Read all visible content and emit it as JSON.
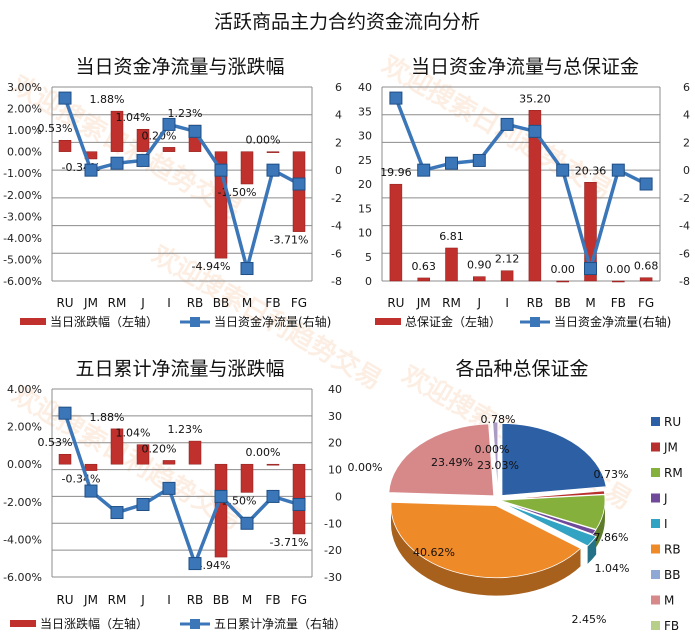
{
  "main_title": "活跃商品主力合约资金流向分析",
  "watermark": "欢迎搜索日利趋势交易",
  "colors": {
    "bar": "#c0302c",
    "line": "#3b76b8",
    "marker": "#3b76b8",
    "grid": "#8c8c8c"
  },
  "chart_data": [
    {
      "type": "bar+line",
      "title": "当日资金净流量与涨跌幅",
      "categories": [
        "RU",
        "JM",
        "RM",
        "J",
        "I",
        "RB",
        "BB",
        "M",
        "FB",
        "FG"
      ],
      "bar_series": {
        "name": "当日涨跌幅（左轴）",
        "values": [
          0.53,
          -0.34,
          1.88,
          1.04,
          0.2,
          1.23,
          -4.94,
          -1.5,
          0.0,
          -3.71
        ],
        "labels": [
          "0.53%",
          "-0.34%",
          "1.88%",
          "1.04%",
          "0.20%",
          "1.23%",
          "-4.94%",
          "-1.50%",
          "0.00%",
          "-3.71%"
        ]
      },
      "line_series": {
        "name": "当日资金净流量(右轴)",
        "values": [
          5.2,
          0.0,
          0.5,
          0.7,
          3.3,
          2.8,
          0.0,
          -7.1,
          0.0,
          -1.0
        ]
      },
      "y_left": {
        "range": [
          -6,
          3
        ],
        "step": 1,
        "ticks": [
          "3.00%",
          "2.00%",
          "1.00%",
          "0.00%",
          "-1.00%",
          "-2.00%",
          "-3.00%",
          "-4.00%",
          "-5.00%",
          "-6.00%"
        ]
      },
      "y_right": {
        "range": [
          -8,
          6
        ],
        "step": 2,
        "ticks": [
          "6",
          "4",
          "2",
          "0",
          "-2",
          "-4",
          "-6",
          "-8"
        ]
      },
      "grid": true,
      "legend": "bottom"
    },
    {
      "type": "bar+line",
      "title": "当日资金净流量与总保证金",
      "categories": [
        "RU",
        "JM",
        "RM",
        "J",
        "I",
        "RB",
        "BB",
        "M",
        "FB",
        "FG"
      ],
      "bar_series": {
        "name": "总保证金（左轴）",
        "values": [
          19.96,
          0.63,
          6.81,
          0.9,
          2.12,
          35.2,
          0.0,
          20.36,
          0.0,
          0.68
        ],
        "labels": [
          "19.96",
          "0.63",
          "6.81",
          "0.90",
          "2.12",
          "35.20",
          "0.00",
          "20.36",
          "0.00",
          "0.68"
        ]
      },
      "line_series": {
        "name": "当日资金净流量(右轴)",
        "values": [
          5.2,
          0.0,
          0.5,
          0.7,
          3.3,
          2.8,
          0.0,
          -7.1,
          0.0,
          -1.0
        ]
      },
      "y_left": {
        "range": [
          0,
          40
        ],
        "step": 5,
        "ticks": [
          "40",
          "35",
          "30",
          "25",
          "20",
          "15",
          "10",
          "5",
          "0"
        ]
      },
      "y_right": {
        "range": [
          -8,
          6
        ],
        "step": 2,
        "ticks": [
          "6",
          "4",
          "2",
          "0",
          "-2",
          "-4",
          "-6",
          "-8"
        ]
      },
      "grid": true,
      "legend": "bottom"
    },
    {
      "type": "bar+line",
      "title": "五日累计净流量与涨跌幅",
      "categories": [
        "RU",
        "JM",
        "RM",
        "J",
        "I",
        "RB",
        "BB",
        "M",
        "FB",
        "FG"
      ],
      "bar_series": {
        "name": "当日涨跌幅（左轴）",
        "values": [
          0.53,
          -0.34,
          1.88,
          1.04,
          0.2,
          1.23,
          -4.94,
          -1.5,
          0.0,
          -3.71
        ],
        "labels": [
          "0.53%",
          "-0.34%",
          "1.88%",
          "1.04%",
          "0.20%",
          "1.23%",
          "-4.94%",
          "-1.50%",
          "0.00%",
          "-3.71%"
        ]
      },
      "line_series": {
        "name": "五日累计净流量（右轴）",
        "values": [
          31,
          2,
          -6,
          -3,
          3,
          -25,
          0,
          -10,
          0,
          -3
        ]
      },
      "y_left": {
        "range": [
          -6,
          4
        ],
        "step": 2,
        "ticks": [
          "4.00%",
          "2.00%",
          "0.00%",
          "-2.00%",
          "-4.00%",
          "-6.00%"
        ]
      },
      "y_right": {
        "range": [
          -30,
          40
        ],
        "step": 10,
        "ticks": [
          "40",
          "30",
          "20",
          "10",
          "0",
          "-10",
          "-20",
          "-30"
        ]
      },
      "grid": true,
      "legend": "bottom"
    },
    {
      "type": "pie",
      "title": "各品种总保证金",
      "categories": [
        "RU",
        "JM",
        "RM",
        "J",
        "I",
        "RB",
        "BB",
        "M",
        "FB",
        "FG"
      ],
      "values": [
        23.03,
        0.73,
        7.86,
        1.04,
        2.45,
        40.62,
        0.0,
        23.49,
        0.0,
        0.78
      ],
      "labels": [
        "23.03%",
        "0.73%",
        "7.86%",
        "1.04%",
        "2.45%",
        "40.62%",
        "0.00%",
        "23.49%",
        "0.00%",
        "0.78%"
      ],
      "colors": [
        "#2c5fa3",
        "#b8302e",
        "#86b03c",
        "#6f4a9a",
        "#32a3c2",
        "#ef8a28",
        "#8fa8d6",
        "#d7898a",
        "#b8cf8a",
        "#a99bc4"
      ],
      "legend_entries": [
        "RU",
        "JM",
        "RM",
        "J",
        "I",
        "RB",
        "BB",
        "M",
        "FB"
      ],
      "legend": "right"
    }
  ]
}
